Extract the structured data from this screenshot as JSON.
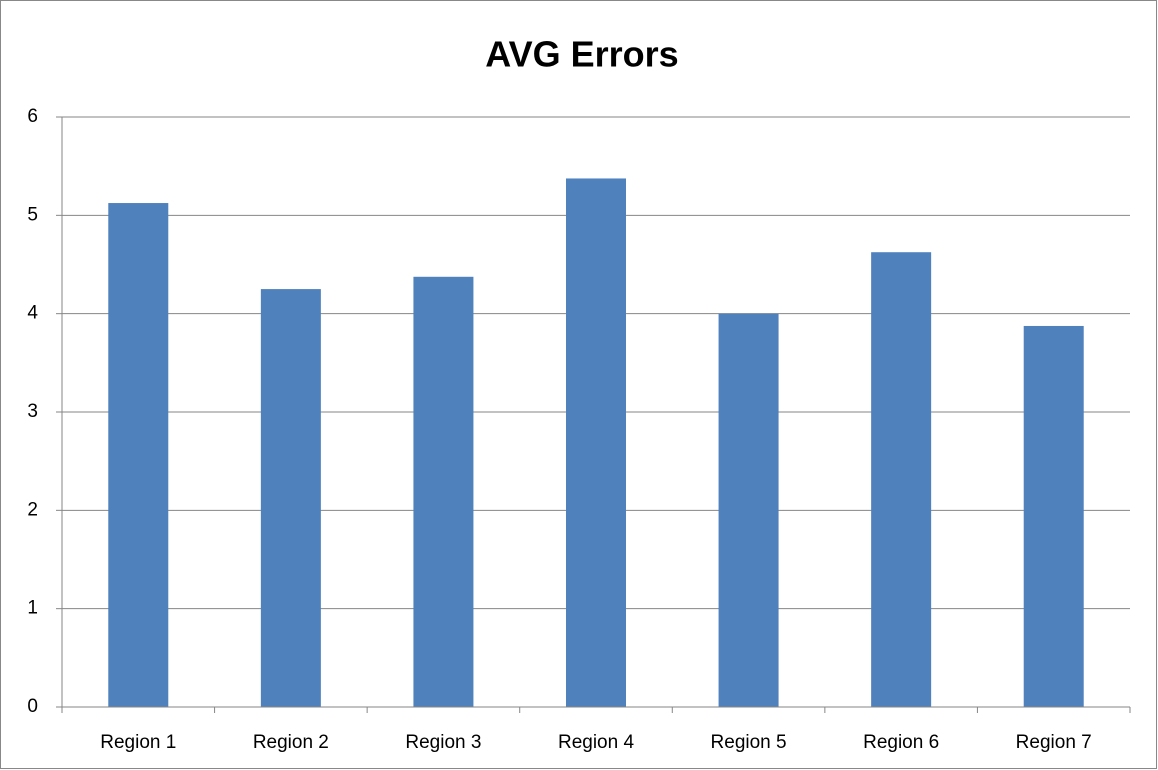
{
  "chart_data": {
    "type": "bar",
    "title": "AVG Errors",
    "categories": [
      "Region 1",
      "Region 2",
      "Region 3",
      "Region 4",
      "Region 5",
      "Region 6",
      "Region 7"
    ],
    "values": [
      5.125,
      4.25,
      4.375,
      5.375,
      4.0,
      4.625,
      3.875
    ],
    "color": "#4f81bd",
    "ylim": [
      0,
      6
    ],
    "yticks": [
      0,
      1,
      2,
      3,
      4,
      5,
      6
    ],
    "grid": true
  }
}
